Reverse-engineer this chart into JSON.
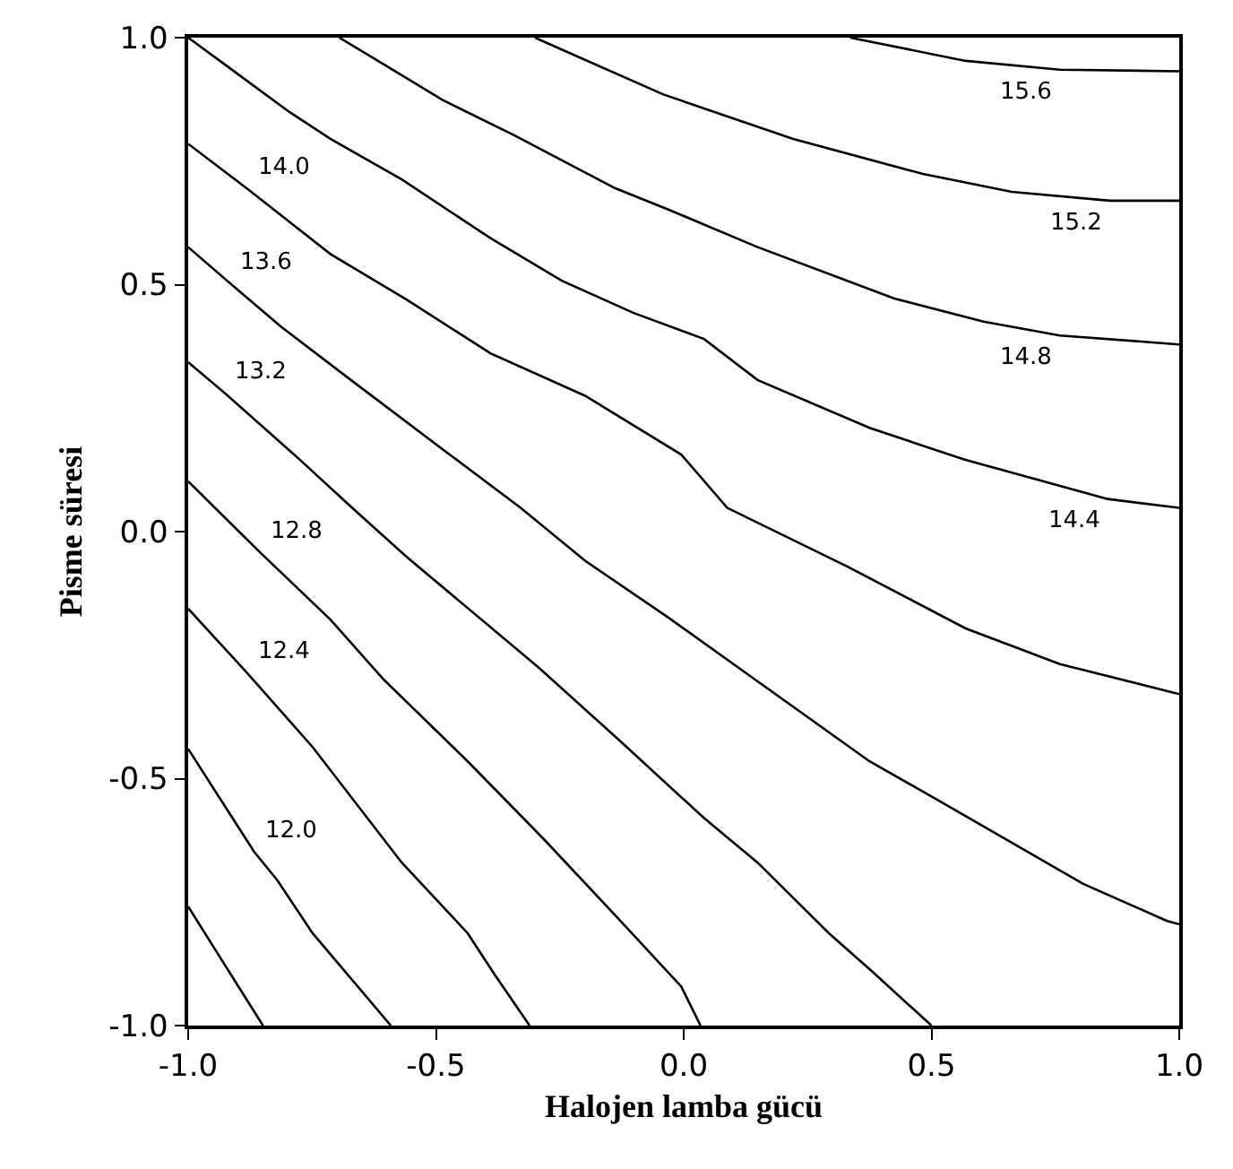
{
  "chart_data": {
    "type": "line",
    "xlabel": "Halojen lamba gücü",
    "ylabel": "Pisme süresi",
    "xlim": [
      -1.0,
      1.0
    ],
    "ylim": [
      -1.0,
      1.0
    ],
    "xticks": [
      {
        "value": -1.0,
        "label": "-1.0"
      },
      {
        "value": -0.5,
        "label": "-0.5"
      },
      {
        "value": 0.0,
        "label": "0.0"
      },
      {
        "value": 0.5,
        "label": "0.5"
      },
      {
        "value": 1.0,
        "label": "1.0"
      }
    ],
    "yticks": [
      {
        "value": -1.0,
        "label": "-1.0"
      },
      {
        "value": -0.5,
        "label": "-0.5"
      },
      {
        "value": 0.0,
        "label": "0.0"
      },
      {
        "value": 0.5,
        "label": "0.5"
      },
      {
        "value": 1.0,
        "label": "1.0"
      }
    ],
    "legend": false,
    "marker": "none",
    "line_style": "solid",
    "series": [
      {
        "color": "#000000",
        "x": [
          -1.0,
          -0.928,
          -0.849
        ],
        "values": [
          -0.759,
          -0.874,
          -1.0
        ]
      },
      {
        "name": "12.0",
        "color": "#000000",
        "x": [
          -1.0,
          -0.867,
          -0.82,
          -0.749,
          -0.591
        ],
        "values": [
          -0.44,
          -0.648,
          -0.706,
          -0.813,
          -1.0
        ]
      },
      {
        "name": "12.4",
        "color": "#000000",
        "x": [
          -1.0,
          -0.882,
          -0.749,
          -0.569,
          -0.436,
          -0.382,
          -0.311
        ],
        "values": [
          -0.156,
          -0.285,
          -0.436,
          -0.67,
          -0.813,
          -0.896,
          -1.0
        ]
      },
      {
        "name": "12.8",
        "color": "#000000",
        "x": [
          -1.0,
          -0.856,
          -0.713,
          -0.605,
          -0.436,
          -0.282,
          -0.138,
          -0.005,
          0.034
        ],
        "values": [
          0.102,
          -0.041,
          -0.178,
          -0.3,
          -0.465,
          -0.623,
          -0.777,
          -0.921,
          -1.0
        ]
      },
      {
        "name": "13.2",
        "color": "#000000",
        "x": [
          -1.0,
          -0.928,
          -0.774,
          -0.669,
          -0.558,
          -0.293,
          -0.127,
          0.041,
          0.149,
          0.293,
          0.382,
          0.5
        ],
        "values": [
          0.343,
          0.282,
          0.145,
          0.048,
          -0.052,
          -0.275,
          -0.425,
          -0.58,
          -0.67,
          -0.813,
          -0.892,
          -1.0
        ]
      },
      {
        "name": "13.6",
        "color": "#000000",
        "x": [
          -1.0,
          -0.917,
          -0.813,
          -0.677,
          -0.487,
          -0.329,
          -0.199,
          -0.031,
          0.149,
          0.375,
          0.533,
          0.806,
          0.975,
          1.0
        ],
        "values": [
          0.576,
          0.504,
          0.415,
          0.311,
          0.167,
          0.048,
          -0.059,
          -0.174,
          -0.303,
          -0.465,
          -0.555,
          -0.713,
          -0.788,
          -0.795
        ]
      },
      {
        "name": "14.0",
        "color": "#000000",
        "x": [
          -1.0,
          -0.882,
          -0.713,
          -0.558,
          -0.39,
          -0.199,
          -0.005,
          0.088,
          0.329,
          0.569,
          0.759,
          1.0
        ],
        "values": [
          0.785,
          0.695,
          0.562,
          0.469,
          0.361,
          0.275,
          0.156,
          0.048,
          -0.07,
          -0.196,
          -0.268,
          -0.329
        ]
      },
      {
        "name": "14.4",
        "color": "#000000",
        "x": [
          -1.0,
          -0.917,
          -0.795,
          -0.713,
          -0.569,
          -0.39,
          -0.246,
          -0.102,
          0.041,
          0.149,
          0.375,
          0.569,
          0.856,
          1.0
        ],
        "values": [
          1.0,
          0.939,
          0.849,
          0.795,
          0.713,
          0.594,
          0.508,
          0.443,
          0.39,
          0.307,
          0.21,
          0.145,
          0.066,
          0.048
        ]
      },
      {
        "name": "14.8",
        "color": "#000000",
        "x": [
          -0.695,
          -0.605,
          -0.487,
          -0.343,
          -0.138,
          -0.031,
          0.149,
          0.425,
          0.605,
          0.759,
          1.0
        ],
        "values": [
          1.0,
          0.946,
          0.874,
          0.803,
          0.695,
          0.652,
          0.576,
          0.472,
          0.425,
          0.397,
          0.379
        ]
      },
      {
        "name": "15.2",
        "color": "#000000",
        "x": [
          -0.3,
          -0.235,
          -0.041,
          0.221,
          0.483,
          0.662,
          0.86,
          1.0
        ],
        "values": [
          1.0,
          0.971,
          0.885,
          0.795,
          0.724,
          0.688,
          0.67,
          0.67
        ]
      },
      {
        "name": "15.6",
        "color": "#000000",
        "x": [
          0.336,
          0.569,
          0.759,
          1.0
        ],
        "values": [
          1.0,
          0.953,
          0.935,
          0.932
        ]
      }
    ]
  }
}
